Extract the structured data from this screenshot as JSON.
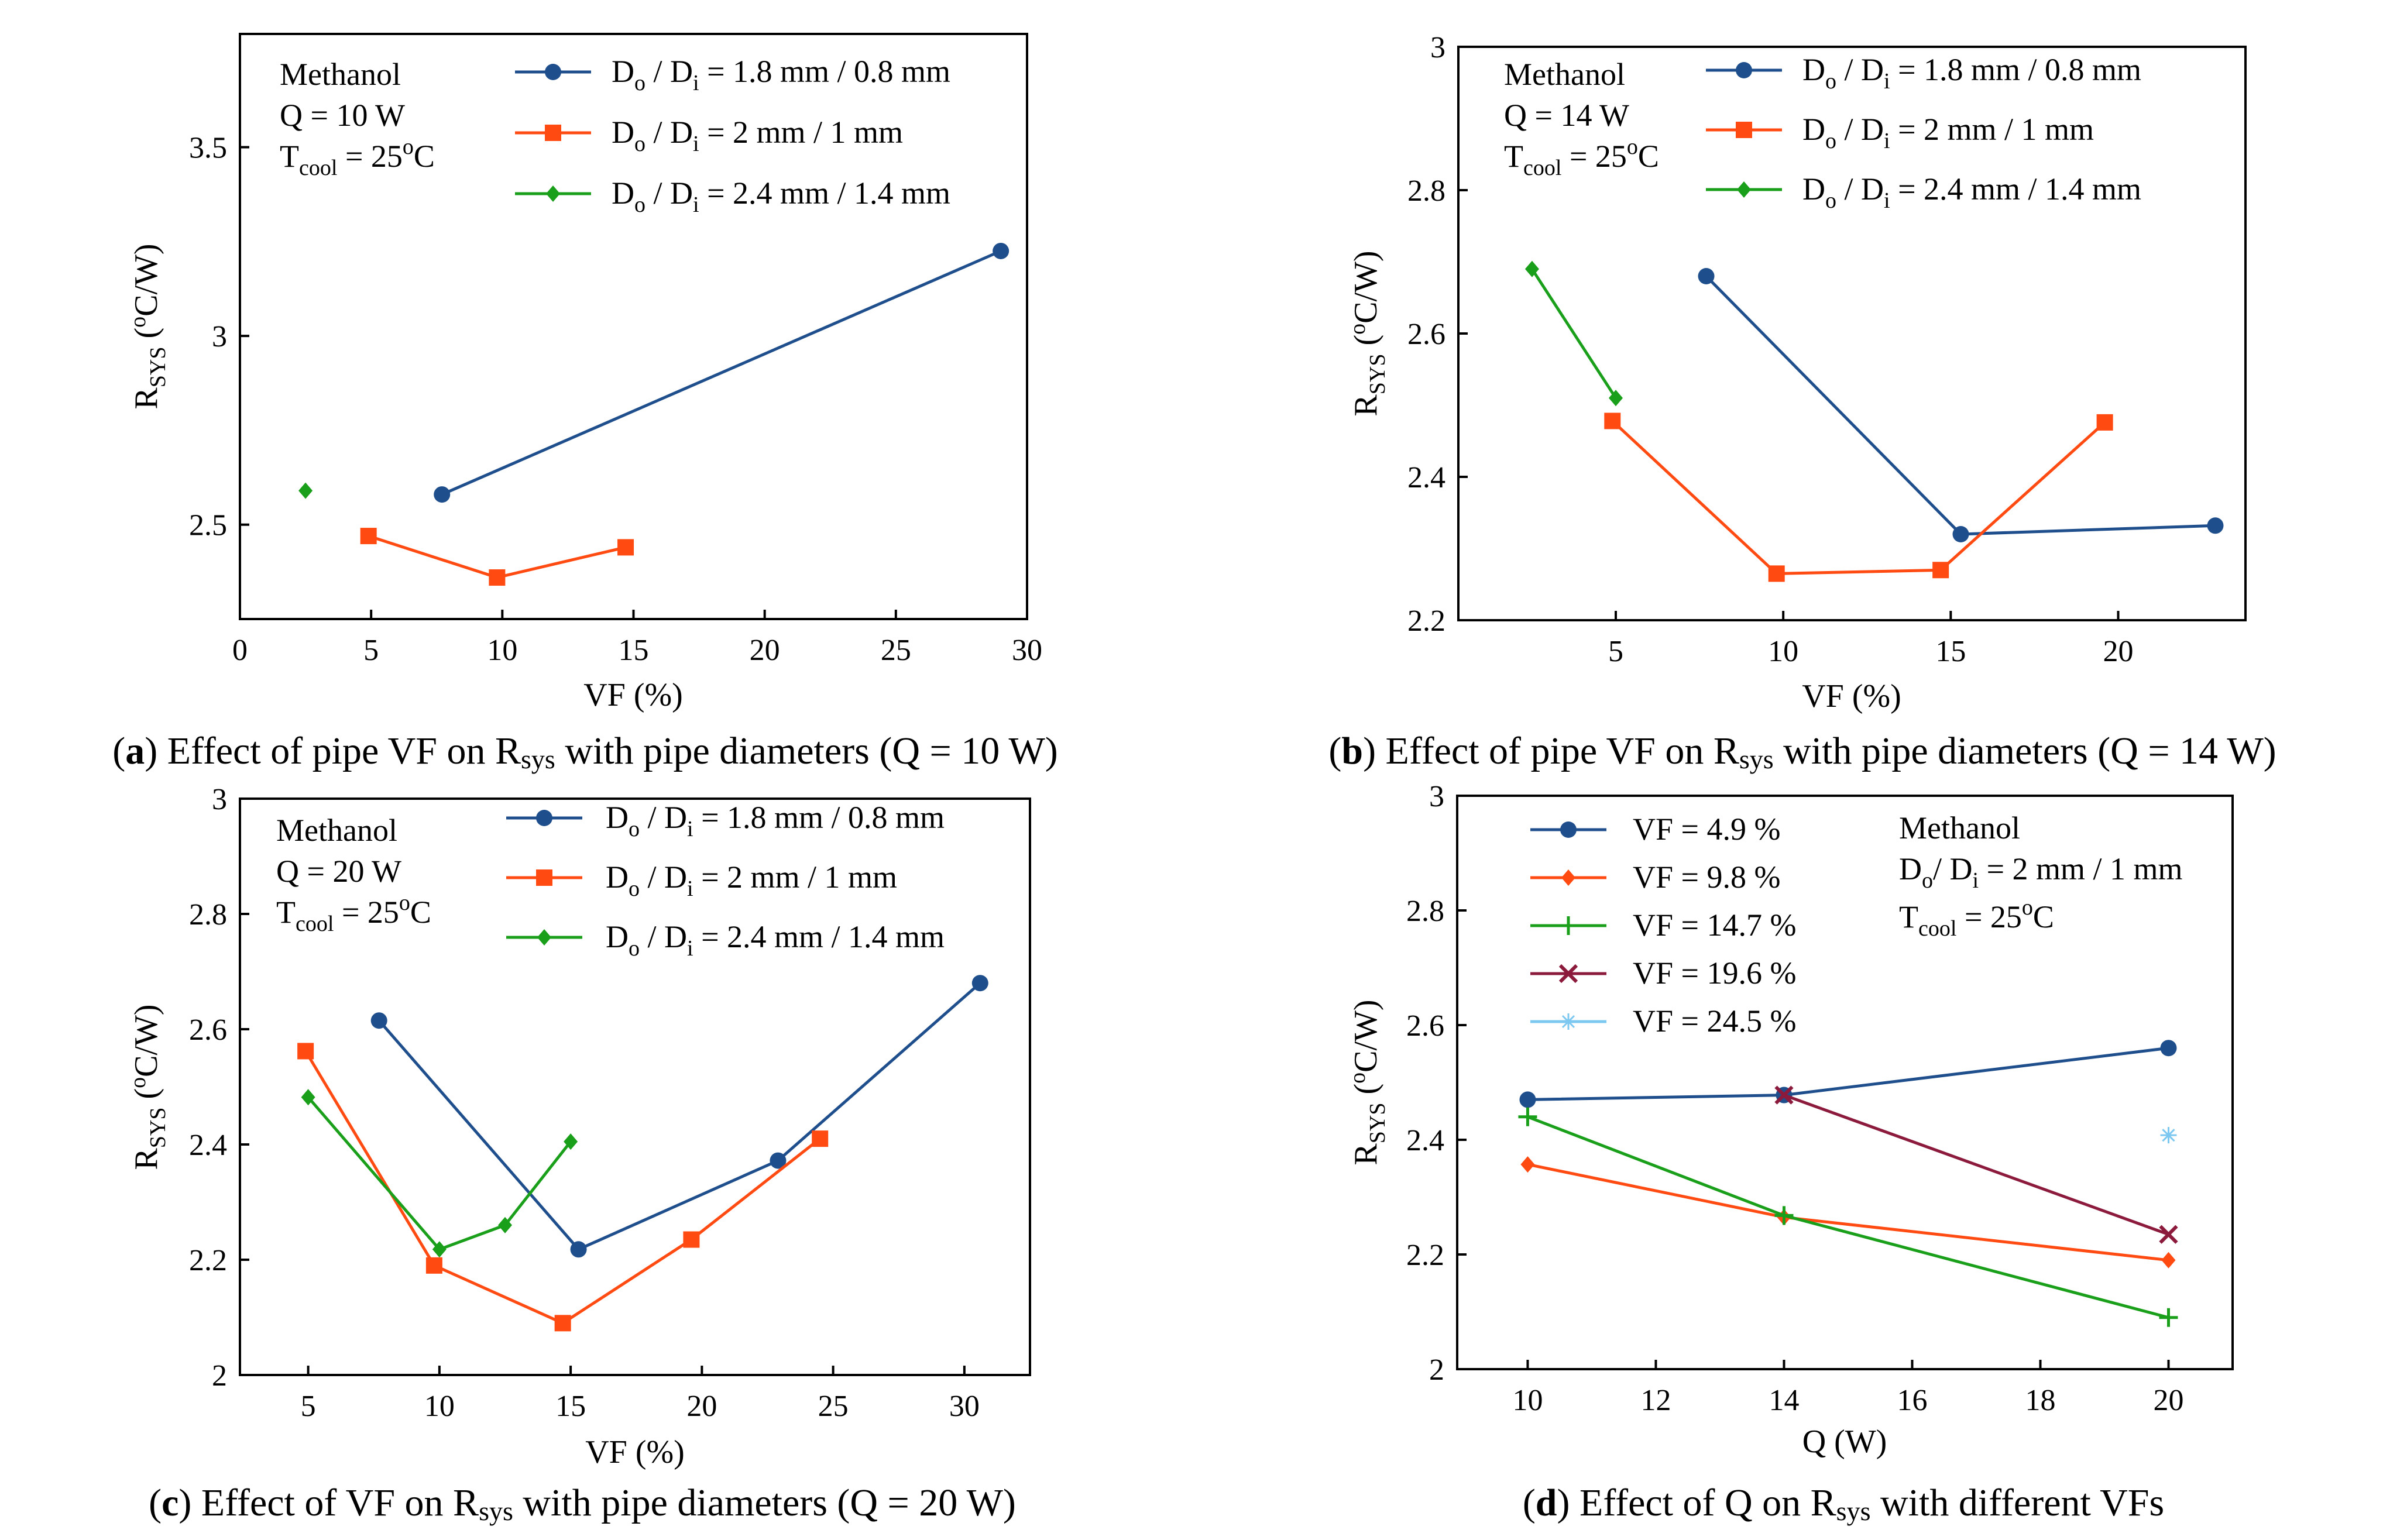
{
  "colors": {
    "blue": "#1f4e8c",
    "orange": "#ff4a12",
    "green": "#1a9f1a",
    "maroon": "#8b1a3c",
    "lightblue": "#7cc8f0"
  },
  "chart_data": [
    {
      "panel": "a",
      "type": "line",
      "caption_letter": "a",
      "caption_pre": "Effect of pipe VF on R",
      "caption_sub": "sys",
      "caption_post": " with pipe diameters (Q = 10 W)",
      "xlabel": "VF (%)",
      "ylabel_main": "R",
      "ylabel_sub": "SYS",
      "ylabel_open": " (",
      "ylabel_sup": "o",
      "ylabel_close": "C/W)",
      "xlim": [
        0,
        30
      ],
      "ylim": [
        2.25,
        3.8
      ],
      "xticks": [
        0,
        5,
        10,
        15,
        20,
        25,
        30
      ],
      "xtick_labels": [
        "0",
        "5",
        "10",
        "15",
        "20",
        "25",
        "30"
      ],
      "yticks": [
        2.5,
        3,
        3.5
      ],
      "ytick_labels": [
        "2.5",
        "3",
        "3.5"
      ],
      "info": {
        "fluid": "Methanol",
        "line2": "Q = 10 W",
        "tcool_main": "T",
        "tcool_sub": "cool",
        "tcool_mid": " = 25",
        "tcool_sup": "o",
        "tcool_end": "C"
      },
      "series": [
        {
          "name": "Do / Di = 1.8 mm / 0.8 mm",
          "lab_pre": "D",
          "lab_sub1": "o",
          "lab_mid": " / D",
          "lab_sub2": "i",
          "lab_post": " = 1.8 mm / 0.8 mm",
          "color": "#1f4e8c",
          "marker": "circle",
          "x": [
            7.7,
            29
          ],
          "y": [
            2.58,
            3.225
          ]
        },
        {
          "name": "Do / Di = 2 mm / 1 mm",
          "lab_pre": "D",
          "lab_sub1": "o",
          "lab_mid": " / D",
          "lab_sub2": "i",
          "lab_post": " = 2 mm / 1 mm",
          "color": "#ff4a12",
          "marker": "square",
          "x": [
            4.9,
            9.8,
            14.7
          ],
          "y": [
            2.47,
            2.36,
            2.44
          ]
        },
        {
          "name": "Do / Di = 2.4 mm / 1.4 mm",
          "lab_pre": "D",
          "lab_sub1": "o",
          "lab_mid": " / D",
          "lab_sub2": "i",
          "lab_post": " = 2.4 mm / 1.4 mm",
          "color": "#1a9f1a",
          "marker": "diamond",
          "x": [
            2.5
          ],
          "y": [
            2.59
          ]
        }
      ]
    },
    {
      "panel": "b",
      "type": "line",
      "caption_letter": "b",
      "caption_pre": "Effect of pipe VF on R",
      "caption_sub": "sys",
      "caption_post": " with pipe diameters (Q = 14 W)",
      "xlabel": "VF (%)",
      "ylabel_main": "R",
      "ylabel_sub": "SYS",
      "ylabel_open": " (",
      "ylabel_sup": "o",
      "ylabel_close": "C/W)",
      "xlim": [
        0.3,
        23.8
      ],
      "ylim": [
        2.2,
        3.0
      ],
      "xticks": [
        5,
        10,
        15,
        20
      ],
      "xtick_labels": [
        "5",
        "10",
        "15",
        "20"
      ],
      "yticks": [
        2.2,
        2.4,
        2.6,
        2.8,
        3.0
      ],
      "ytick_labels": [
        "2.2",
        "2.4",
        "2.6",
        "2.8",
        "3"
      ],
      "info": {
        "fluid": "Methanol",
        "line2": "Q = 14 W",
        "tcool_main": "T",
        "tcool_sub": "cool",
        "tcool_mid": " = 25",
        "tcool_sup": "o",
        "tcool_end": "C"
      },
      "series": [
        {
          "name": "Do / Di = 1.8 mm / 0.8 mm",
          "lab_pre": "D",
          "lab_sub1": "o",
          "lab_mid": " / D",
          "lab_sub2": "i",
          "lab_post": " = 1.8 mm / 0.8 mm",
          "color": "#1f4e8c",
          "marker": "circle",
          "x": [
            7.7,
            15.3,
            22.9
          ],
          "y": [
            2.68,
            2.32,
            2.332
          ]
        },
        {
          "name": "Do / Di = 2 mm / 1 mm",
          "lab_pre": "D",
          "lab_sub1": "o",
          "lab_mid": " / D",
          "lab_sub2": "i",
          "lab_post": " = 2 mm / 1 mm",
          "color": "#ff4a12",
          "marker": "square",
          "x": [
            4.9,
            9.8,
            14.7,
            19.6
          ],
          "y": [
            2.478,
            2.265,
            2.27,
            2.476
          ]
        },
        {
          "name": "Do / Di = 2.4 mm / 1.4 mm",
          "lab_pre": "D",
          "lab_sub1": "o",
          "lab_mid": " / D",
          "lab_sub2": "i",
          "lab_post": " = 2.4 mm / 1.4 mm",
          "color": "#1a9f1a",
          "marker": "diamond",
          "x": [
            2.5,
            5.0
          ],
          "y": [
            2.69,
            2.51
          ]
        }
      ]
    },
    {
      "panel": "c",
      "type": "line",
      "caption_letter": "c",
      "caption_pre": "Effect of VF on R",
      "caption_sub": "sys",
      "caption_post": " with pipe diameters (Q = 20 W)",
      "xlabel": "VF (%)",
      "ylabel_main": "R",
      "ylabel_sub": "SYS",
      "ylabel_open": " (",
      "ylabel_sup": "o",
      "ylabel_close": "C/W)",
      "xlim": [
        2.4,
        32.5
      ],
      "ylim": [
        2.0,
        3.0
      ],
      "xticks": [
        5,
        10,
        15,
        20,
        25,
        30
      ],
      "xtick_labels": [
        "5",
        "10",
        "15",
        "20",
        "25",
        "30"
      ],
      "yticks": [
        2.0,
        2.2,
        2.4,
        2.6,
        2.8,
        3.0
      ],
      "ytick_labels": [
        "2",
        "2.2",
        "2.4",
        "2.6",
        "2.8",
        "3"
      ],
      "info": {
        "fluid": "Methanol",
        "line2": "Q = 20 W",
        "tcool_main": "T",
        "tcool_sub": "cool",
        "tcool_mid": " = 25",
        "tcool_sup": "o",
        "tcool_end": "C"
      },
      "series": [
        {
          "name": "Do / Di = 1.8 mm / 0.8 mm",
          "lab_pre": "D",
          "lab_sub1": "o",
          "lab_mid": " / D",
          "lab_sub2": "i",
          "lab_post": " = 1.8 mm / 0.8 mm",
          "color": "#1f4e8c",
          "marker": "circle",
          "x": [
            7.7,
            15.3,
            22.9,
            30.6
          ],
          "y": [
            2.615,
            2.218,
            2.372,
            2.68
          ]
        },
        {
          "name": "Do / Di = 2 mm / 1 mm",
          "lab_pre": "D",
          "lab_sub1": "o",
          "lab_mid": " / D",
          "lab_sub2": "i",
          "lab_post": " = 2 mm / 1 mm",
          "color": "#ff4a12",
          "marker": "square",
          "x": [
            4.9,
            9.8,
            14.7,
            19.6,
            24.5
          ],
          "y": [
            2.562,
            2.19,
            2.09,
            2.235,
            2.41
          ]
        },
        {
          "name": "Do / Di = 2.4 mm / 1.4 mm",
          "lab_pre": "D",
          "lab_sub1": "o",
          "lab_mid": " / D",
          "lab_sub2": "i",
          "lab_post": " = 2.4 mm / 1.4 mm",
          "color": "#1a9f1a",
          "marker": "diamond",
          "x": [
            5.0,
            10.0,
            12.5,
            15.0
          ],
          "y": [
            2.482,
            2.218,
            2.26,
            2.405
          ]
        }
      ]
    },
    {
      "panel": "d",
      "type": "line",
      "caption_letter": "d",
      "caption_pre": "Effect of Q on R",
      "caption_sub": "sys",
      "caption_post": " with different VFs",
      "xlabel": "Q (W)",
      "ylabel_main": "R",
      "ylabel_sub": "SYS",
      "ylabel_open": " (",
      "ylabel_sup": "o",
      "ylabel_close": "C/W)",
      "xlim": [
        8.9,
        21.0
      ],
      "ylim": [
        2.0,
        3.0
      ],
      "xticks": [
        10,
        12,
        14,
        16,
        18,
        20
      ],
      "xtick_labels": [
        "10",
        "12",
        "14",
        "16",
        "18",
        "20"
      ],
      "yticks": [
        2.0,
        2.2,
        2.4,
        2.6,
        2.8,
        3.0
      ],
      "ytick_labels": [
        "2",
        "2.2",
        "2.4",
        "2.6",
        "2.8",
        "3"
      ],
      "info": {
        "fluid": "Methanol",
        "dia_pre": "D",
        "dia_sub1": "o",
        "dia_mid": "/ D",
        "dia_sub2": "i",
        "dia_post": " = 2 mm / 1 mm",
        "tcool_main": "T",
        "tcool_sub": "cool",
        "tcool_mid": " = 25",
        "tcool_sup": "o",
        "tcool_end": "C"
      },
      "series": [
        {
          "name": "VF = 4.9 %",
          "color": "#1f4e8c",
          "marker": "circle",
          "x": [
            10,
            14,
            20
          ],
          "y": [
            2.47,
            2.478,
            2.56
          ]
        },
        {
          "name": "VF = 9.8 %",
          "color": "#ff4a12",
          "marker": "diamond",
          "x": [
            10,
            14,
            20
          ],
          "y": [
            2.357,
            2.265,
            2.19
          ]
        },
        {
          "name": "VF = 14.7 %",
          "color": "#1a9f1a",
          "marker": "plus",
          "x": [
            10,
            14,
            20
          ],
          "y": [
            2.44,
            2.268,
            2.09
          ]
        },
        {
          "name": "VF = 19.6 %",
          "color": "#8b1a3c",
          "marker": "cross",
          "x": [
            14,
            20
          ],
          "y": [
            2.478,
            2.235
          ]
        },
        {
          "name": "VF = 24.5 %",
          "color": "#7cc8f0",
          "marker": "star",
          "x": [
            20
          ],
          "y": [
            2.408
          ]
        }
      ]
    }
  ]
}
